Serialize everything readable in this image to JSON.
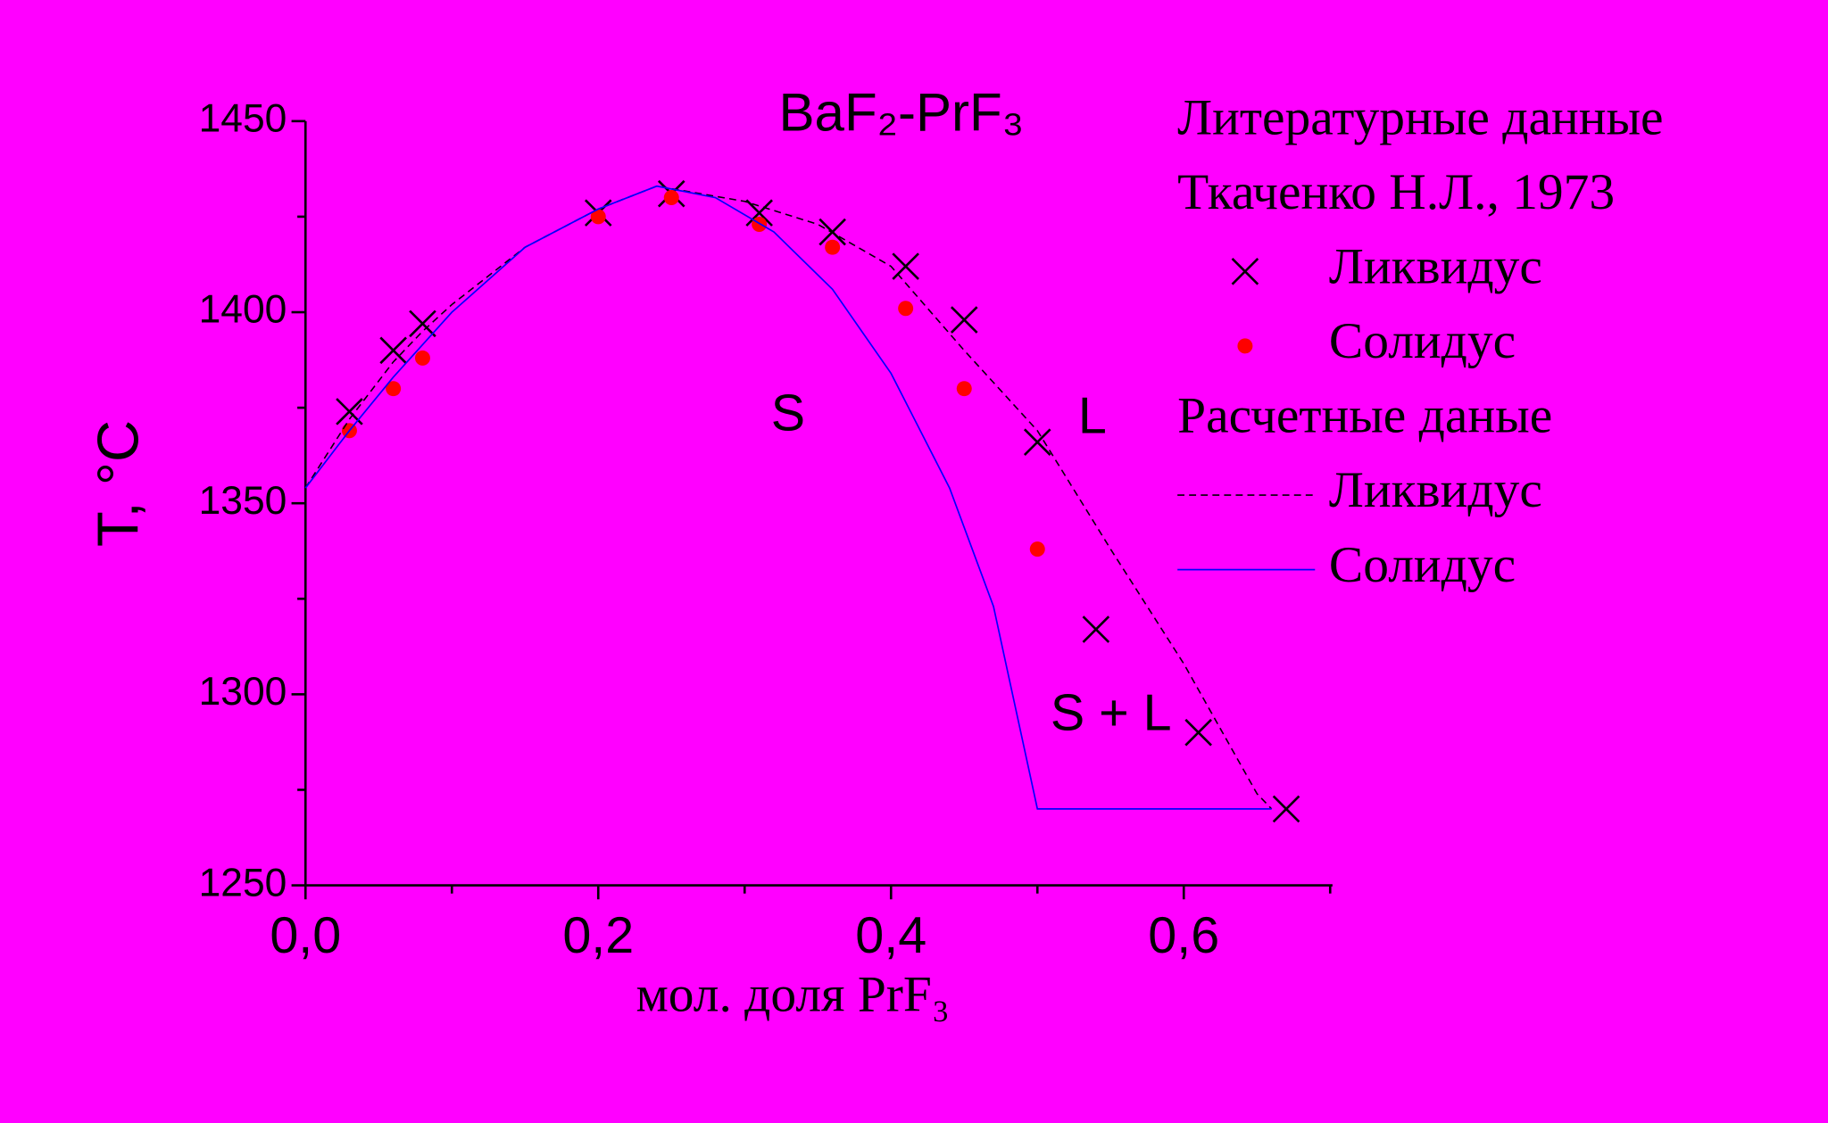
{
  "chart_data": {
    "type": "scatter",
    "title": "BaF₂-PrF₃",
    "xlabel": "мол. доля PrF₃",
    "ylabel": "T, °C",
    "xlim": [
      0,
      0.7
    ],
    "ylim": [
      1250,
      1450
    ],
    "xticks": [
      {
        "value": 0,
        "label": "0,0"
      },
      {
        "value": 0.2,
        "label": "0,2"
      },
      {
        "value": 0.4,
        "label": "0,4"
      },
      {
        "value": 0.6,
        "label": "0,6"
      }
    ],
    "xminorticks": [
      0.1,
      0.3,
      0.5,
      0.7
    ],
    "yticks": [
      1250,
      1300,
      1350,
      1400,
      1450
    ],
    "yminorticks": [
      1275,
      1325,
      1375,
      1425
    ],
    "background": "#ff00ff",
    "legend": {
      "loc": "upper right",
      "headers": [
        "Литературные данные",
        "Ткаченко Н.Л., 1973",
        "Расчетные даные"
      ]
    },
    "annotations": [
      "S",
      "L",
      "S + L"
    ],
    "series": [
      {
        "name": "Ликвидус",
        "color": "#000000",
        "style": "x",
        "x": [
          0.03,
          0.06,
          0.08,
          0.2,
          0.25,
          0.31,
          0.36,
          0.41,
          0.45,
          0.5,
          0.54,
          0.61,
          0.67
        ],
        "values": [
          1374,
          1390,
          1397,
          1426,
          1431,
          1426,
          1421,
          1412,
          1398,
          1366,
          1317,
          1290,
          1270
        ]
      },
      {
        "name": "Солидус",
        "color": "#ff0000",
        "style": "dot",
        "x": [
          0.03,
          0.06,
          0.08,
          0.2,
          0.25,
          0.31,
          0.36,
          0.41,
          0.45,
          0.5
        ],
        "values": [
          1369,
          1380,
          1388,
          1425,
          1430,
          1423,
          1417,
          1401,
          1380,
          1338
        ]
      },
      {
        "name": "Ликвидус",
        "color": "#000000",
        "style": "dashed",
        "x": [
          0,
          0.03,
          0.06,
          0.08,
          0.1,
          0.15,
          0.2,
          0.24,
          0.3,
          0.35,
          0.4,
          0.45,
          0.5,
          0.55,
          0.6,
          0.65,
          0.66
        ],
        "values": [
          1354,
          1372,
          1387,
          1395,
          1402,
          1417,
          1427,
          1433,
          1429,
          1423,
          1412,
          1390,
          1369,
          1338,
          1308,
          1274,
          1270
        ]
      },
      {
        "name": "Солидус",
        "color": "#0000ff",
        "style": "solid",
        "x": [
          0,
          0.03,
          0.06,
          0.1,
          0.15,
          0.2,
          0.24,
          0.28,
          0.32,
          0.36,
          0.4,
          0.44,
          0.47,
          0.5,
          0.66
        ],
        "values": [
          1354,
          1369,
          1383,
          1400,
          1417,
          1427,
          1433,
          1430,
          1421,
          1406,
          1384,
          1354,
          1323,
          1270,
          1270
        ]
      }
    ]
  }
}
